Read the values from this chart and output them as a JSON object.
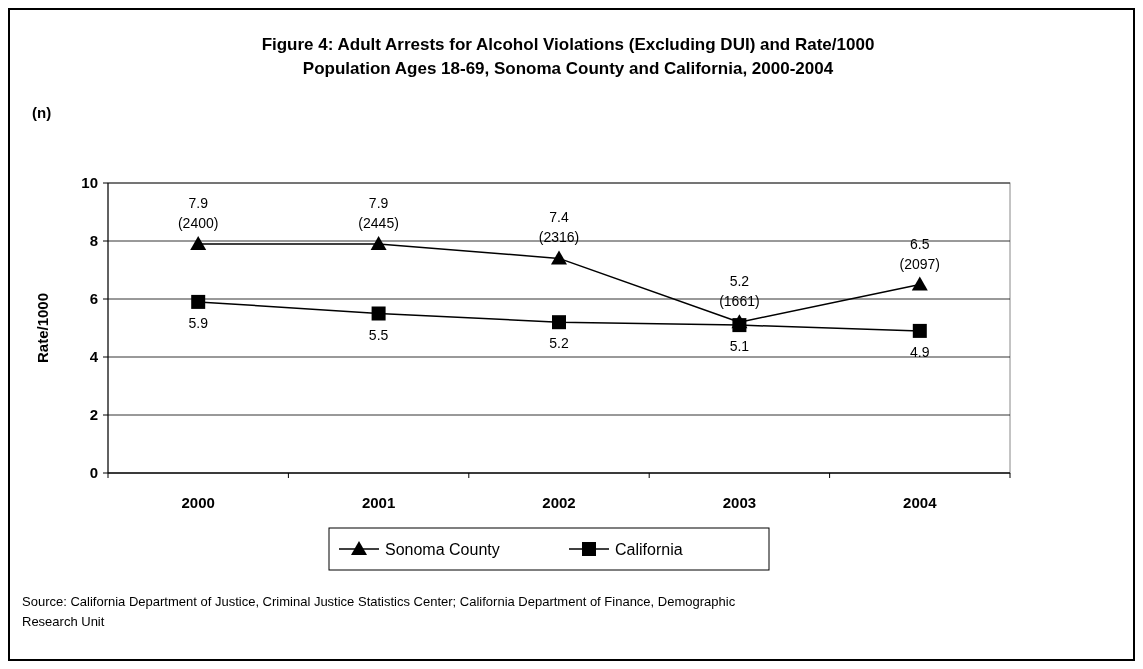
{
  "chart_data": {
    "type": "line",
    "title": "Figure 4:  Adult Arrests for Alcohol Violations (Excluding DUI) and Rate/1000\nPopulation Ages 18-69, Sonoma County and California, 2000-2004",
    "ylabel": "Rate/1000",
    "categories": [
      "2000",
      "2001",
      "2002",
      "2003",
      "2004"
    ],
    "series": [
      {
        "name": "Sonoma County",
        "color": "#000000",
        "marker": "triangle",
        "values": [
          7.9,
          7.9,
          7.4,
          5.2,
          6.5
        ],
        "value_labels": [
          "7.9\n(2400)",
          "7.9\n(2445)",
          "7.4\n(2316)",
          "5.2\n(1661)",
          "6.5\n(2097)"
        ]
      },
      {
        "name": "California",
        "color": "#000000",
        "marker": "square",
        "values": [
          5.9,
          5.5,
          5.2,
          5.1,
          4.9
        ],
        "value_labels": [
          "5.9",
          "5.5",
          "5.2",
          "5.1",
          "4.9"
        ]
      }
    ],
    "ylim": [
      0,
      10
    ],
    "yticks": [
      0,
      2,
      4,
      6,
      8,
      10
    ],
    "grid": "y",
    "legend": "bottom",
    "line_style": "solid",
    "annotations": [
      "(n)",
      "Source: California Department of Justice, Criminal Justice Statistics Center; California Department of Finance, Demographic\nResearch Unit"
    ]
  }
}
